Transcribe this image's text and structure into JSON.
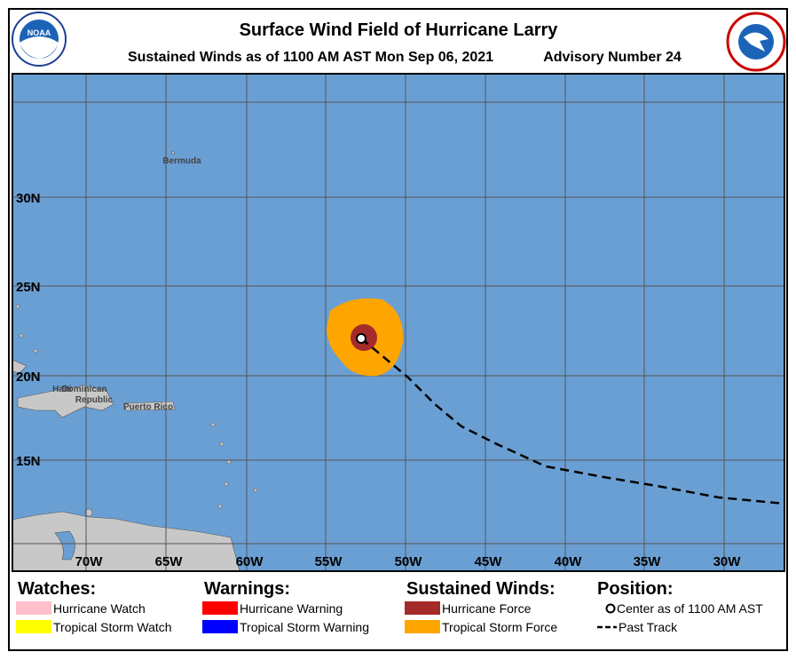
{
  "header": {
    "logo_left": "NOAA",
    "title": "Surface Wind Field of Hurricane Larry",
    "subtitle": "Sustained Winds as of 1100 AM AST Mon Sep 06, 2021",
    "advisory": "Advisory Number 24"
  },
  "map": {
    "lat_labels": [
      "30N",
      "25N",
      "20N",
      "15N"
    ],
    "lon_labels": [
      "70W",
      "65W",
      "60W",
      "55W",
      "50W",
      "45W",
      "40W",
      "35W",
      "30W"
    ],
    "places": [
      "Bermuda",
      "Haiti",
      "Dominican",
      "Republic",
      "Puerto Rico"
    ]
  },
  "legend": {
    "watches": {
      "title": "Watches:",
      "items": [
        {
          "label": "Hurricane Watch",
          "color": "#ffc0cb"
        },
        {
          "label": "Tropical Storm Watch",
          "color": "#ffff00"
        }
      ]
    },
    "warnings": {
      "title": "Warnings:",
      "items": [
        {
          "label": "Hurricane Warning",
          "color": "#ff0000"
        },
        {
          "label": "Tropical Storm Warning",
          "color": "#0000ff"
        }
      ]
    },
    "winds": {
      "title": "Sustained Winds:",
      "items": [
        {
          "label": "Hurricane Force",
          "color": "#a52a2a"
        },
        {
          "label": "Tropical Storm Force",
          "color": "#ffa500"
        }
      ]
    },
    "position": {
      "title": "Position:",
      "items": [
        {
          "label": "Center as of 1100 AM AST"
        },
        {
          "label": "Past Track"
        }
      ]
    }
  }
}
